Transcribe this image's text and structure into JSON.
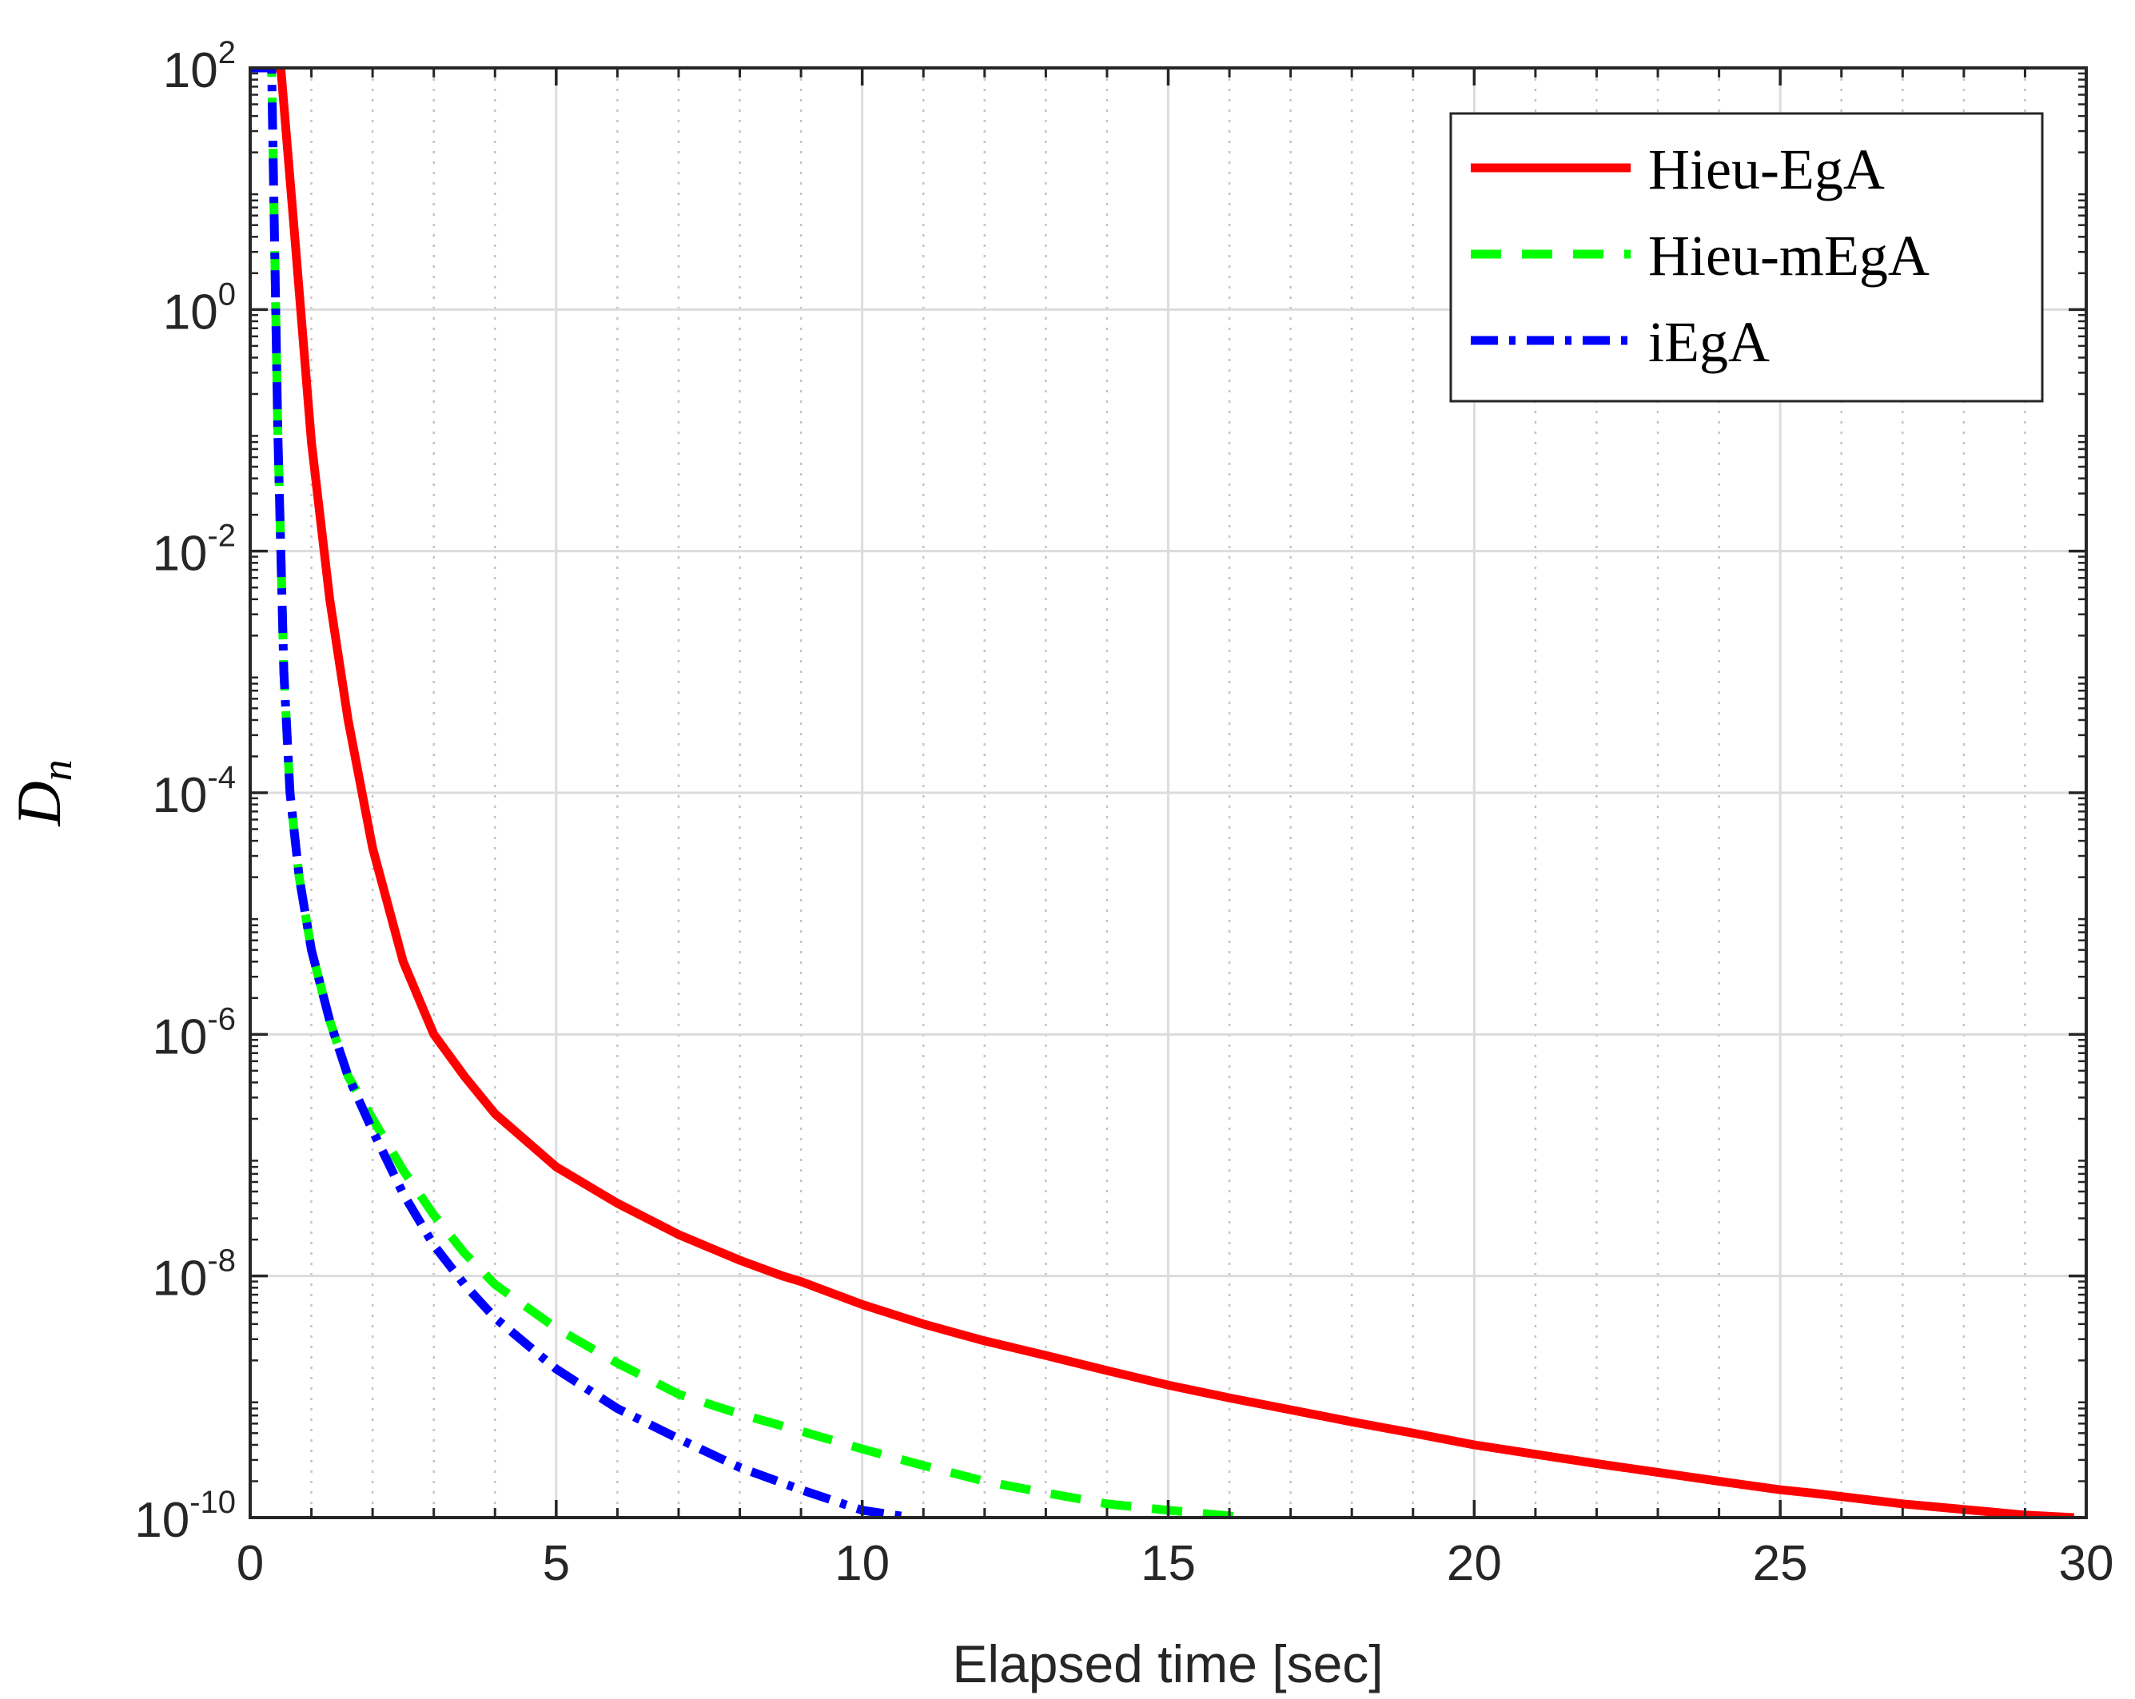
{
  "chart_data": {
    "type": "line",
    "title": "",
    "xlabel": "Elapsed time [sec]",
    "ylabel": {
      "base": "D",
      "subscript": "n"
    },
    "xlim": [
      0,
      30
    ],
    "ylim": [
      1e-10,
      100
    ],
    "yscale": "log",
    "grid": true,
    "legend_position": "top-right",
    "xticks": [
      {
        "value": 0,
        "label": "0"
      },
      {
        "value": 5,
        "label": "5"
      },
      {
        "value": 10,
        "label": "10"
      },
      {
        "value": 15,
        "label": "15"
      },
      {
        "value": 20,
        "label": "20"
      },
      {
        "value": 25,
        "label": "25"
      },
      {
        "value": 30,
        "label": "30"
      }
    ],
    "yticks": [
      {
        "value": 100,
        "base": "10",
        "exp": "2"
      },
      {
        "value": 1,
        "base": "10",
        "exp": "0"
      },
      {
        "value": 0.01,
        "base": "10",
        "exp": "-2"
      },
      {
        "value": 0.0001,
        "base": "10",
        "exp": "-4"
      },
      {
        "value": 1e-06,
        "base": "10",
        "exp": "-6"
      },
      {
        "value": 1e-08,
        "base": "10",
        "exp": "-8"
      },
      {
        "value": 1e-10,
        "base": "10",
        "exp": "-10"
      }
    ],
    "series": [
      {
        "name": "Hieu-EgA",
        "color": "#ff0000",
        "style": "solid",
        "x": [
          0.0,
          0.35,
          0.5,
          0.7,
          1.0,
          1.3,
          1.6,
          2.0,
          2.5,
          3.0,
          3.5,
          4.0,
          5.0,
          6.0,
          7.0,
          8.0,
          8.7,
          9.0,
          10.0,
          11.0,
          12.0,
          13.0,
          14.0,
          15.0,
          16.0,
          17.0,
          18.0,
          19.0,
          20.0,
          22.0,
          24.0,
          25.0,
          25.5,
          27.0,
          29.0,
          29.8
        ],
        "y": [
          100,
          100,
          100,
          6,
          0.08,
          0.004,
          0.0004,
          3.5e-05,
          4e-06,
          1e-06,
          4.5e-07,
          2.2e-07,
          8e-08,
          4e-08,
          2.2e-08,
          1.35e-08,
          1e-08,
          9e-09,
          5.8e-09,
          4e-09,
          2.9e-09,
          2.2e-09,
          1.65e-09,
          1.25e-09,
          9.8e-10,
          7.8e-10,
          6.2e-10,
          5e-10,
          4e-10,
          2.8e-10,
          2e-10,
          1.7e-10,
          1.6e-10,
          1.3e-10,
          1.05e-10,
          1e-10
        ]
      },
      {
        "name": "Hieu-mEgA",
        "color": "#00ff00",
        "style": "dashed",
        "x": [
          0.0,
          0.2,
          0.35,
          0.45,
          0.55,
          0.65,
          0.8,
          1.0,
          1.3,
          1.6,
          2.0,
          2.5,
          3.0,
          3.5,
          4.0,
          5.0,
          6.0,
          7.0,
          8.0,
          9.0,
          10.0,
          11.0,
          12.0,
          13.0,
          14.0,
          15.0,
          16.3
        ],
        "y": [
          100,
          100,
          100,
          0.1,
          0.001,
          0.0001,
          2e-05,
          5e-06,
          1.3e-06,
          4.5e-07,
          2e-07,
          7.5e-08,
          3.2e-08,
          1.55e-08,
          8.5e-09,
          3.7e-09,
          1.9e-09,
          1.05e-09,
          7.2e-10,
          5.2e-10,
          3.7e-10,
          2.7e-10,
          2e-10,
          1.6e-10,
          1.3e-10,
          1.15e-10,
          1e-10
        ]
      },
      {
        "name": "iEgA",
        "color": "#0000ff",
        "style": "dashdot",
        "x": [
          0.0,
          0.2,
          0.35,
          0.45,
          0.55,
          0.65,
          0.8,
          1.0,
          1.3,
          1.6,
          2.0,
          2.5,
          3.0,
          3.5,
          4.0,
          5.0,
          6.0,
          7.0,
          8.0,
          9.0,
          10.0,
          10.8
        ],
        "y": [
          100,
          100,
          100,
          0.1,
          0.001,
          0.0001,
          2e-05,
          5e-06,
          1.3e-06,
          4.5e-07,
          1.6e-07,
          4.8e-08,
          1.8e-08,
          8.5e-09,
          4.5e-09,
          1.7e-09,
          8e-10,
          4.5e-10,
          2.6e-10,
          1.7e-10,
          1.15e-10,
          1e-10
        ]
      }
    ]
  }
}
